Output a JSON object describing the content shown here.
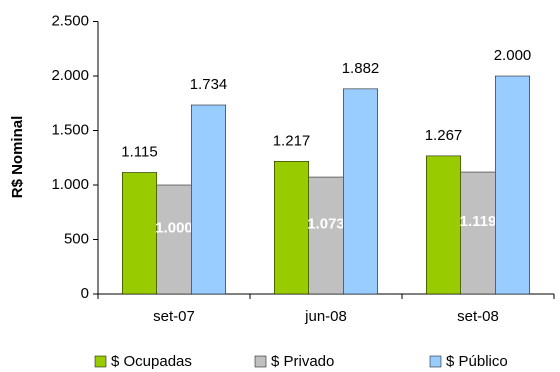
{
  "chart_data": {
    "type": "bar",
    "y_label": "R$ Nominal",
    "categories": [
      "set-07",
      "jun-08",
      "set-08"
    ],
    "series": [
      {
        "name": "$ Ocupadas",
        "color": "#99cc00",
        "values": [
          1115,
          1217,
          1267
        ],
        "value_labels": [
          "1.115",
          "1.217",
          "1.267"
        ]
      },
      {
        "name": "$ Privado",
        "color": "#c0c0c0",
        "values": [
          1000,
          1073,
          1119
        ],
        "value_labels": [
          "1.000",
          "1.073",
          "1.119"
        ]
      },
      {
        "name": "$ Público",
        "color": "#99ccff",
        "values": [
          1734,
          1882,
          2000
        ],
        "value_labels": [
          "1.734",
          "1.882",
          "2.000"
        ]
      }
    ],
    "ylim": [
      0,
      2500
    ],
    "yticks": [
      0,
      500,
      {
        "value": 1000,
        "label": "1.000"
      },
      {
        "value": 1500,
        "label": "1.500"
      },
      {
        "value": 2000,
        "label": "2.000"
      },
      {
        "value": 2500,
        "label": "2.500"
      }
    ]
  }
}
